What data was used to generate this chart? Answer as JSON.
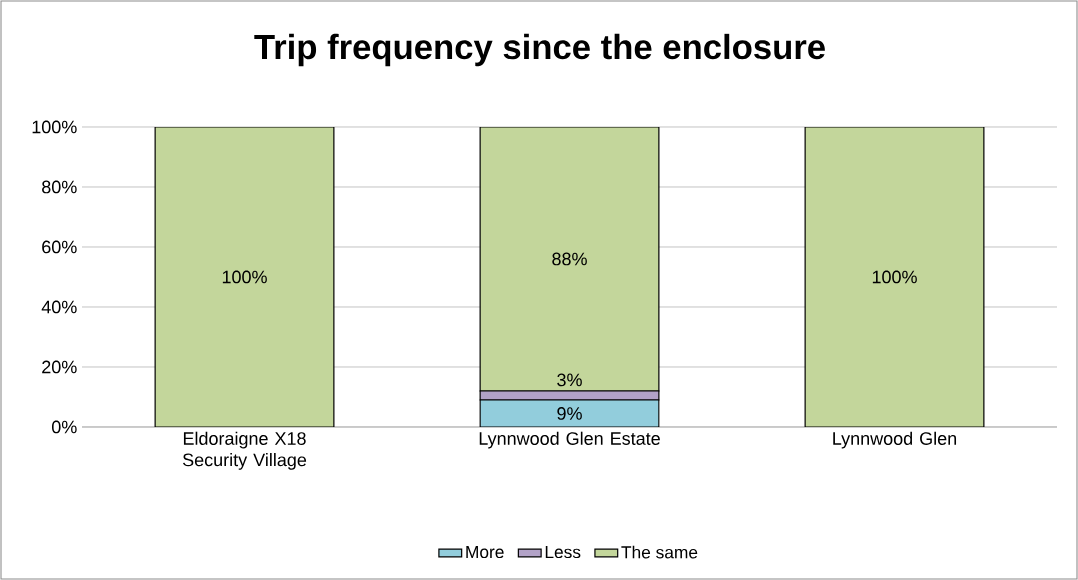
{
  "chart_data": {
    "type": "bar",
    "title": "Trip frequency since the enclosure",
    "categories": [
      "Eldoraigne X18 Security Village",
      "Lynnwood Glen Estate",
      "Lynnwood Glen"
    ],
    "stacked": true,
    "series": [
      {
        "name": "More",
        "color": "#92cddc",
        "values": [
          0,
          9,
          0
        ],
        "value_labels": [
          null,
          "9%",
          null
        ]
      },
      {
        "name": "Less",
        "color": "#b2a2c7",
        "values": [
          0,
          3,
          0
        ],
        "value_labels": [
          null,
          "3%",
          null
        ]
      },
      {
        "name": "The same",
        "color": "#c3d69b",
        "values": [
          100,
          88,
          100
        ],
        "value_labels": [
          "100%",
          "88%",
          "100%"
        ]
      }
    ],
    "ylim": [
      0,
      100
    ],
    "yticks": [
      {
        "value": 0,
        "label": "0%"
      },
      {
        "value": 20,
        "label": "20%"
      },
      {
        "value": 40,
        "label": "40%"
      },
      {
        "value": 60,
        "label": "60%"
      },
      {
        "value": 80,
        "label": "80%"
      },
      {
        "value": 100,
        "label": "100%"
      }
    ],
    "grid": "y",
    "legend": "bottom"
  }
}
